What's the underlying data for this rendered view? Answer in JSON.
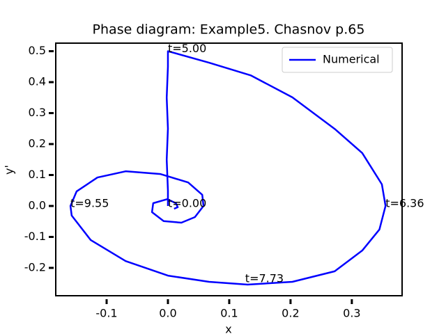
{
  "chart_data": {
    "type": "line",
    "title": "Phase diagram: Example5. Chasnov p.65",
    "xlabel": "x",
    "ylabel": "y'",
    "x": [
      0,
      0,
      -0.002,
      0,
      -0.002,
      0,
      0,
      0.067,
      0.135,
      0.203,
      0.272,
      0.317,
      0.349,
      0.355,
      0.345,
      0.317,
      0.272,
      0.203,
      0.13,
      0.067,
      0,
      -0.069,
      -0.126,
      -0.157,
      -0.159,
      -0.149,
      -0.115,
      -0.069,
      -0.012,
      0.033,
      0.056,
      0.058,
      0.044,
      0.022,
      -0.007,
      -0.026,
      -0.024,
      -0.001,
      0.013,
      0.016,
      0.01
    ],
    "series": [
      {
        "name": "Numerical",
        "color": "#0000ff",
        "values": [
          0,
          0.05,
          0.15,
          0.25,
          0.35,
          0.45,
          0.5,
          0.463,
          0.422,
          0.351,
          0.249,
          0.171,
          0.07,
          0,
          -0.076,
          -0.144,
          -0.211,
          -0.245,
          -0.254,
          -0.245,
          -0.225,
          -0.178,
          -0.11,
          -0.031,
          0,
          0.047,
          0.092,
          0.112,
          0.103,
          0.076,
          0.036,
          0,
          -0.036,
          -0.054,
          -0.049,
          -0.02,
          0.009,
          0.022,
          0.009,
          -0.004,
          -0.009
        ]
      }
    ],
    "annotations": [
      {
        "text": "t=0.00",
        "x": 0,
        "y": 0
      },
      {
        "text": "t=5.00",
        "x": 0,
        "y": 0.5
      },
      {
        "text": "t=6.36",
        "x": 0.355,
        "y": 0
      },
      {
        "text": "t=7.73",
        "x": 0.126,
        "y": -0.243
      },
      {
        "text": "t=9.55",
        "x": -0.159,
        "y": 0
      }
    ],
    "xlim": [
      -0.183,
      0.382
    ],
    "ylim": [
      -0.29,
      0.526
    ],
    "xticks": [
      -0.1,
      {
        "value": 0,
        "label": "0.0"
      },
      0.1,
      0.2,
      0.3
    ],
    "yticks": [
      -0.2,
      -0.1,
      {
        "value": 0,
        "label": "0.0"
      },
      0.1,
      0.2,
      0.3,
      0.4,
      0.5
    ],
    "legend": "upper right",
    "grid": false
  }
}
